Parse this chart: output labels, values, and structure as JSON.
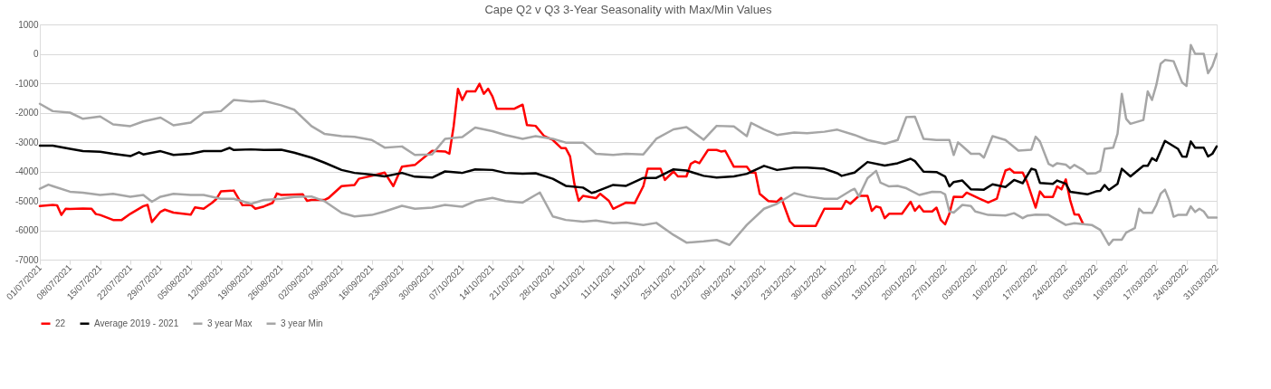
{
  "chart_data": {
    "type": "line",
    "title": "Cape Q2 v Q3 3-Year Seasonality with Max/Min Values",
    "xlim": [
      "2021-07-01",
      "2022-03-31"
    ],
    "xticks": [
      {
        "value": "2021-07-01",
        "label": "01/07/2021"
      },
      {
        "value": "2021-07-08",
        "label": "08/07/2021"
      },
      {
        "value": "2021-07-15",
        "label": "15/07/2021"
      },
      {
        "value": "2021-07-22",
        "label": "22/07/2021"
      },
      {
        "value": "2021-07-29",
        "label": "29/07/2021"
      },
      {
        "value": "2021-08-05",
        "label": "05/08/2021"
      },
      {
        "value": "2021-08-12",
        "label": "12/08/2021"
      },
      {
        "value": "2021-08-19",
        "label": "19/08/2021"
      },
      {
        "value": "2021-08-26",
        "label": "26/08/2021"
      },
      {
        "value": "2021-09-02",
        "label": "02/09/2021"
      },
      {
        "value": "2021-09-09",
        "label": "09/09/2021"
      },
      {
        "value": "2021-09-16",
        "label": "16/09/2021"
      },
      {
        "value": "2021-09-23",
        "label": "23/09/2021"
      },
      {
        "value": "2021-09-30",
        "label": "30/09/2021"
      },
      {
        "value": "2021-10-07",
        "label": "07/10/2021"
      },
      {
        "value": "2021-10-14",
        "label": "14/10/2021"
      },
      {
        "value": "2021-10-21",
        "label": "21/10/2021"
      },
      {
        "value": "2021-10-28",
        "label": "28/10/2021"
      },
      {
        "value": "2021-11-04",
        "label": "04/11/2021"
      },
      {
        "value": "2021-11-11",
        "label": "11/11/2021"
      },
      {
        "value": "2021-11-18",
        "label": "18/11/2021"
      },
      {
        "value": "2021-11-25",
        "label": "25/11/2021"
      },
      {
        "value": "2021-12-02",
        "label": "02/12/2021"
      },
      {
        "value": "2021-12-09",
        "label": "09/12/2021"
      },
      {
        "value": "2021-12-16",
        "label": "16/12/2021"
      },
      {
        "value": "2021-12-23",
        "label": "23/12/2021"
      },
      {
        "value": "2021-12-30",
        "label": "30/12/2021"
      },
      {
        "value": "2022-01-06",
        "label": "06/01/2022"
      },
      {
        "value": "2022-01-13",
        "label": "13/01/2022"
      },
      {
        "value": "2022-01-20",
        "label": "20/01/2022"
      },
      {
        "value": "2022-01-27",
        "label": "27/01/2022"
      },
      {
        "value": "2022-02-03",
        "label": "03/02/2022"
      },
      {
        "value": "2022-02-10",
        "label": "10/02/2022"
      },
      {
        "value": "2022-02-17",
        "label": "17/02/2022"
      },
      {
        "value": "2022-02-24",
        "label": "24/02/2022"
      },
      {
        "value": "2022-03-03",
        "label": "03/03/2022"
      },
      {
        "value": "2022-03-10",
        "label": "10/03/2022"
      },
      {
        "value": "2022-03-17",
        "label": "17/03/2022"
      },
      {
        "value": "2022-03-24",
        "label": "24/03/2022"
      },
      {
        "value": "2022-03-31",
        "label": "31/03/2022"
      }
    ],
    "ylim": [
      -7000,
      1000
    ],
    "yticks": [
      -7000,
      -6000,
      -5000,
      -4000,
      -3000,
      -2000,
      -1000,
      0,
      1000
    ],
    "grid": "y",
    "legend": "bottom",
    "series": [
      {
        "name": "22",
        "color": "#ff0000",
        "x": [
          "2021-07-01",
          "2021-07-04",
          "2021-07-05",
          "2021-07-06",
          "2021-07-07",
          "2021-07-08",
          "2021-07-11",
          "2021-07-13",
          "2021-07-14",
          "2021-07-15",
          "2021-07-18",
          "2021-07-20",
          "2021-07-22",
          "2021-07-25",
          "2021-07-26",
          "2021-07-27",
          "2021-07-29",
          "2021-07-30",
          "2021-08-01",
          "2021-08-05",
          "2021-08-06",
          "2021-08-08",
          "2021-08-10",
          "2021-08-11",
          "2021-08-12",
          "2021-08-15",
          "2021-08-17",
          "2021-08-19",
          "2021-08-20",
          "2021-08-22",
          "2021-08-24",
          "2021-08-25",
          "2021-08-26",
          "2021-08-31",
          "2021-09-01",
          "2021-09-02",
          "2021-09-05",
          "2021-09-06",
          "2021-09-09",
          "2021-09-12",
          "2021-09-13",
          "2021-09-16",
          "2021-09-19",
          "2021-09-21",
          "2021-09-23",
          "2021-09-26",
          "2021-09-30",
          "2021-10-03",
          "2021-10-04",
          "2021-10-05",
          "2021-10-06",
          "2021-10-07",
          "2021-10-08",
          "2021-10-10",
          "2021-10-11",
          "2021-10-12",
          "2021-10-13",
          "2021-10-14",
          "2021-10-15",
          "2021-10-19",
          "2021-10-20",
          "2021-10-21",
          "2021-10-22",
          "2021-10-24",
          "2021-10-26",
          "2021-10-28",
          "2021-10-30",
          "2021-10-31",
          "2021-11-01",
          "2021-11-02",
          "2021-11-03",
          "2021-11-04",
          "2021-11-07",
          "2021-11-08",
          "2021-11-10",
          "2021-11-11",
          "2021-11-14",
          "2021-11-16",
          "2021-11-18",
          "2021-11-19",
          "2021-11-22",
          "2021-11-23",
          "2021-11-25",
          "2021-11-26",
          "2021-11-28",
          "2021-11-29",
          "2021-11-30",
          "2021-12-01",
          "2021-12-03",
          "2021-12-05",
          "2021-12-06",
          "2021-12-07",
          "2021-12-09",
          "2021-12-12",
          "2021-12-13",
          "2021-12-14",
          "2021-12-15",
          "2021-12-17",
          "2021-12-19",
          "2021-12-20",
          "2021-12-22",
          "2021-12-23",
          "2021-12-28",
          "2021-12-30",
          "2022-01-03",
          "2022-01-04",
          "2022-01-05",
          "2022-01-07",
          "2022-01-09",
          "2022-01-10",
          "2022-01-11",
          "2022-01-12",
          "2022-01-13",
          "2022-01-14",
          "2022-01-16",
          "2022-01-17",
          "2022-01-19",
          "2022-01-20",
          "2022-01-21",
          "2022-01-22",
          "2022-01-24",
          "2022-01-25",
          "2022-01-26",
          "2022-01-27",
          "2022-01-28",
          "2022-01-29",
          "2022-01-31",
          "2022-02-01",
          "2022-02-04",
          "2022-02-06",
          "2022-02-08",
          "2022-02-09",
          "2022-02-10",
          "2022-02-11",
          "2022-02-12",
          "2022-02-14",
          "2022-02-15",
          "2022-02-17",
          "2022-02-18",
          "2022-02-19",
          "2022-02-21",
          "2022-02-22",
          "2022-02-23",
          "2022-02-24",
          "2022-02-25",
          "2022-02-26",
          "2022-02-27",
          "2022-02-28"
        ],
        "values": [
          -5180,
          -5140,
          -5150,
          -5480,
          -5270,
          -5280,
          -5260,
          -5270,
          -5450,
          -5480,
          -5650,
          -5650,
          -5440,
          -5180,
          -5140,
          -5720,
          -5370,
          -5300,
          -5400,
          -5470,
          -5220,
          -5270,
          -5060,
          -4930,
          -4680,
          -4650,
          -5150,
          -5140,
          -5270,
          -5190,
          -5070,
          -4750,
          -4800,
          -4780,
          -5000,
          -4970,
          -4970,
          -4900,
          -4500,
          -4460,
          -4250,
          -4150,
          -4040,
          -4500,
          -3840,
          -3780,
          -3300,
          -3320,
          -3400,
          -2460,
          -1190,
          -1570,
          -1280,
          -1280,
          -1020,
          -1360,
          -1190,
          -1450,
          -1870,
          -1870,
          -1800,
          -1730,
          -2420,
          -2450,
          -2800,
          -2930,
          -3210,
          -3210,
          -3490,
          -4420,
          -5000,
          -4830,
          -4910,
          -4760,
          -5000,
          -5270,
          -5060,
          -5080,
          -4500,
          -3910,
          -3910,
          -4290,
          -4000,
          -4170,
          -4170,
          -3740,
          -3660,
          -3720,
          -3270,
          -3270,
          -3320,
          -3300,
          -3840,
          -3840,
          -4040,
          -4040,
          -4760,
          -5010,
          -5030,
          -4900,
          -5700,
          -5850,
          -5850,
          -5270,
          -5270,
          -5000,
          -5100,
          -4830,
          -4830,
          -5340,
          -5190,
          -5230,
          -5590,
          -5440,
          -5440,
          -5440,
          -5030,
          -5340,
          -5170,
          -5360,
          -5360,
          -5230,
          -5650,
          -5800,
          -5440,
          -4860,
          -4870,
          -4720,
          -4930,
          -5060,
          -4930,
          -4420,
          -3970,
          -3910,
          -4040,
          -4040,
          -4350,
          -5230,
          -4680,
          -4870,
          -4870,
          -4510,
          -4610,
          -4270,
          -4970,
          -5460,
          -5470,
          -5780
        ]
      },
      {
        "name": "Average 2019 - 2021",
        "color": "#000000",
        "x": [
          "2021-07-01",
          "2021-07-04",
          "2021-07-08",
          "2021-07-11",
          "2021-07-15",
          "2021-07-18",
          "2021-07-22",
          "2021-07-24",
          "2021-07-25",
          "2021-07-29",
          "2021-08-01",
          "2021-08-05",
          "2021-08-08",
          "2021-08-12",
          "2021-08-14",
          "2021-08-15",
          "2021-08-19",
          "2021-08-22",
          "2021-08-26",
          "2021-08-29",
          "2021-09-02",
          "2021-09-05",
          "2021-09-09",
          "2021-09-12",
          "2021-09-16",
          "2021-09-19",
          "2021-09-23",
          "2021-09-26",
          "2021-09-30",
          "2021-10-03",
          "2021-10-07",
          "2021-10-10",
          "2021-10-14",
          "2021-10-17",
          "2021-10-21",
          "2021-10-24",
          "2021-10-28",
          "2021-10-31",
          "2021-11-04",
          "2021-11-06",
          "2021-11-07",
          "2021-11-11",
          "2021-11-14",
          "2021-11-18",
          "2021-11-21",
          "2021-11-25",
          "2021-11-28",
          "2021-12-02",
          "2021-12-05",
          "2021-12-09",
          "2021-12-12",
          "2021-12-16",
          "2021-12-19",
          "2021-12-23",
          "2021-12-26",
          "2021-12-30",
          "2022-01-02",
          "2022-01-03",
          "2022-01-06",
          "2022-01-09",
          "2022-01-13",
          "2022-01-16",
          "2022-01-19",
          "2022-01-20",
          "2022-01-22",
          "2022-01-25",
          "2022-01-27",
          "2022-01-28",
          "2022-01-29",
          "2022-01-31",
          "2022-02-02",
          "2022-02-05",
          "2022-02-07",
          "2022-02-10",
          "2022-02-12",
          "2022-02-14",
          "2022-02-16",
          "2022-02-17",
          "2022-02-18",
          "2022-02-21",
          "2022-02-22",
          "2022-02-24",
          "2022-02-25",
          "2022-03-01",
          "2022-03-03",
          "2022-03-04",
          "2022-03-05",
          "2022-03-06",
          "2022-03-08",
          "2022-03-09",
          "2022-03-11",
          "2022-03-14",
          "2022-03-15",
          "2022-03-16",
          "2022-03-17",
          "2022-03-19",
          "2022-03-22",
          "2022-03-23",
          "2022-03-24",
          "2022-03-25",
          "2022-03-26",
          "2022-03-28",
          "2022-03-29",
          "2022-03-30",
          "2022-03-31"
        ],
        "values": [
          -3120,
          -3120,
          -3230,
          -3310,
          -3330,
          -3400,
          -3480,
          -3350,
          -3420,
          -3310,
          -3440,
          -3400,
          -3310,
          -3310,
          -3200,
          -3270,
          -3250,
          -3270,
          -3260,
          -3360,
          -3530,
          -3700,
          -3950,
          -4050,
          -4110,
          -4170,
          -4050,
          -4180,
          -4210,
          -4000,
          -4050,
          -3930,
          -3950,
          -4050,
          -4080,
          -4060,
          -4250,
          -4490,
          -4550,
          -4730,
          -4690,
          -4460,
          -4490,
          -4220,
          -4220,
          -3930,
          -3970,
          -4150,
          -4210,
          -4170,
          -4080,
          -3810,
          -3950,
          -3870,
          -3870,
          -3910,
          -4060,
          -4150,
          -4040,
          -3680,
          -3800,
          -3720,
          -3570,
          -3650,
          -4010,
          -4020,
          -4170,
          -4510,
          -4360,
          -4310,
          -4610,
          -4620,
          -4440,
          -4530,
          -4290,
          -4400,
          -3910,
          -3950,
          -4390,
          -4420,
          -4310,
          -4420,
          -4690,
          -4780,
          -4680,
          -4660,
          -4460,
          -4630,
          -4420,
          -3910,
          -4170,
          -3810,
          -3810,
          -3550,
          -3640,
          -2960,
          -3230,
          -3490,
          -3500,
          -2980,
          -3190,
          -3190,
          -3490,
          -3400,
          -3150
        ]
      },
      {
        "name": "3 year Max",
        "color": "#a6a6a6",
        "x": [
          "2021-07-01",
          "2021-07-04",
          "2021-07-08",
          "2021-07-11",
          "2021-07-15",
          "2021-07-18",
          "2021-07-22",
          "2021-07-25",
          "2021-07-29",
          "2021-08-01",
          "2021-08-05",
          "2021-08-08",
          "2021-08-12",
          "2021-08-15",
          "2021-08-19",
          "2021-08-22",
          "2021-08-26",
          "2021-08-29",
          "2021-09-02",
          "2021-09-05",
          "2021-09-09",
          "2021-09-12",
          "2021-09-16",
          "2021-09-19",
          "2021-09-23",
          "2021-09-26",
          "2021-09-30",
          "2021-10-03",
          "2021-10-07",
          "2021-10-10",
          "2021-10-14",
          "2021-10-17",
          "2021-10-21",
          "2021-10-24",
          "2021-10-28",
          "2021-10-31",
          "2021-11-04",
          "2021-11-07",
          "2021-11-11",
          "2021-11-14",
          "2021-11-18",
          "2021-11-21",
          "2021-11-25",
          "2021-11-28",
          "2021-12-02",
          "2021-12-05",
          "2021-12-09",
          "2021-12-12",
          "2021-12-13",
          "2021-12-16",
          "2021-12-19",
          "2021-12-23",
          "2021-12-26",
          "2021-12-30",
          "2022-01-02",
          "2022-01-06",
          "2022-01-09",
          "2022-01-13",
          "2022-01-16",
          "2022-01-18",
          "2022-01-20",
          "2022-01-22",
          "2022-01-25",
          "2022-01-28",
          "2022-01-29",
          "2022-01-30",
          "2022-01-31",
          "2022-02-02",
          "2022-02-04",
          "2022-02-05",
          "2022-02-07",
          "2022-02-10",
          "2022-02-13",
          "2022-02-16",
          "2022-02-17",
          "2022-02-18",
          "2022-02-20",
          "2022-02-21",
          "2022-02-22",
          "2022-02-24",
          "2022-02-25",
          "2022-02-26",
          "2022-02-28",
          "2022-03-01",
          "2022-03-03",
          "2022-03-04",
          "2022-03-05",
          "2022-03-07",
          "2022-03-08",
          "2022-03-09",
          "2022-03-10",
          "2022-03-11",
          "2022-03-14",
          "2022-03-15",
          "2022-03-16",
          "2022-03-17",
          "2022-03-18",
          "2022-03-19",
          "2022-03-21",
          "2022-03-23",
          "2022-03-24",
          "2022-03-25",
          "2022-03-26",
          "2022-03-28",
          "2022-03-29",
          "2022-03-30",
          "2022-03-31"
        ],
        "values": [
          -1700,
          -1950,
          -2000,
          -2210,
          -2130,
          -2400,
          -2460,
          -2300,
          -2170,
          -2430,
          -2340,
          -2000,
          -1950,
          -1570,
          -1620,
          -1600,
          -1750,
          -1900,
          -2460,
          -2720,
          -2800,
          -2820,
          -2930,
          -3190,
          -3150,
          -3440,
          -3420,
          -2890,
          -2830,
          -2510,
          -2630,
          -2760,
          -2890,
          -2800,
          -2890,
          -3020,
          -3020,
          -3400,
          -3440,
          -3400,
          -3420,
          -2890,
          -2570,
          -2490,
          -2920,
          -2450,
          -2470,
          -2800,
          -2350,
          -2570,
          -2760,
          -2680,
          -2700,
          -2650,
          -2580,
          -2760,
          -2930,
          -3060,
          -2930,
          -2150,
          -2140,
          -2890,
          -2930,
          -2930,
          -3440,
          -3010,
          -3140,
          -3400,
          -3400,
          -3530,
          -2800,
          -2930,
          -3290,
          -3260,
          -2820,
          -2980,
          -3740,
          -3820,
          -3720,
          -3770,
          -3890,
          -3780,
          -3950,
          -4080,
          -4060,
          -3980,
          -3230,
          -3190,
          -2720,
          -1360,
          -2210,
          -2380,
          -2250,
          -1280,
          -1570,
          -1060,
          -340,
          -210,
          -250,
          -980,
          -1090,
          300,
          0,
          0,
          -660,
          -420,
          0
        ]
      },
      {
        "name": "3 year Min",
        "color": "#a6a6a6",
        "x": [
          "2021-07-01",
          "2021-07-03",
          "2021-07-04",
          "2021-07-08",
          "2021-07-11",
          "2021-07-15",
          "2021-07-18",
          "2021-07-22",
          "2021-07-25",
          "2021-07-27",
          "2021-07-29",
          "2021-08-01",
          "2021-08-05",
          "2021-08-08",
          "2021-08-12",
          "2021-08-15",
          "2021-08-19",
          "2021-08-22",
          "2021-08-26",
          "2021-08-29",
          "2021-09-02",
          "2021-09-05",
          "2021-09-09",
          "2021-09-12",
          "2021-09-16",
          "2021-09-19",
          "2021-09-23",
          "2021-09-26",
          "2021-09-30",
          "2021-10-03",
          "2021-10-07",
          "2021-10-10",
          "2021-10-14",
          "2021-10-17",
          "2021-10-21",
          "2021-10-24",
          "2021-10-25",
          "2021-10-28",
          "2021-10-31",
          "2021-11-04",
          "2021-11-07",
          "2021-11-11",
          "2021-11-14",
          "2021-11-18",
          "2021-11-21",
          "2021-11-25",
          "2021-11-28",
          "2021-12-02",
          "2021-12-05",
          "2021-12-08",
          "2021-12-12",
          "2021-12-16",
          "2021-12-19",
          "2021-12-23",
          "2021-12-26",
          "2021-12-30",
          "2022-01-02",
          "2022-01-05",
          "2022-01-06",
          "2022-01-07",
          "2022-01-09",
          "2022-01-11",
          "2022-01-12",
          "2022-01-14",
          "2022-01-16",
          "2022-01-18",
          "2022-01-21",
          "2022-01-24",
          "2022-01-26",
          "2022-01-27",
          "2022-01-28",
          "2022-01-29",
          "2022-01-31",
          "2022-02-02",
          "2022-02-03",
          "2022-02-06",
          "2022-02-10",
          "2022-02-12",
          "2022-02-14",
          "2022-02-15",
          "2022-02-17",
          "2022-02-20",
          "2022-02-24",
          "2022-02-26",
          "2022-03-02",
          "2022-03-04",
          "2022-03-06",
          "2022-03-07",
          "2022-03-09",
          "2022-03-10",
          "2022-03-12",
          "2022-03-13",
          "2022-03-14",
          "2022-03-16",
          "2022-03-17",
          "2022-03-18",
          "2022-03-19",
          "2022-03-20",
          "2022-03-21",
          "2022-03-22",
          "2022-03-24",
          "2022-03-25",
          "2022-03-26",
          "2022-03-27",
          "2022-03-28",
          "2022-03-29",
          "2022-03-31"
        ],
        "values": [
          -4590,
          -4450,
          -4500,
          -4690,
          -4720,
          -4800,
          -4760,
          -4860,
          -4800,
          -5030,
          -4860,
          -4760,
          -4800,
          -4800,
          -4930,
          -4930,
          -5100,
          -4970,
          -4930,
          -4870,
          -4850,
          -5010,
          -5410,
          -5530,
          -5480,
          -5360,
          -5170,
          -5270,
          -5230,
          -5140,
          -5200,
          -5010,
          -4900,
          -5010,
          -5060,
          -4800,
          -4720,
          -5530,
          -5650,
          -5710,
          -5670,
          -5760,
          -5740,
          -5820,
          -5750,
          -6160,
          -6420,
          -6380,
          -6330,
          -6500,
          -5820,
          -5270,
          -5100,
          -4740,
          -4850,
          -4930,
          -4930,
          -4660,
          -4590,
          -4850,
          -4230,
          -3980,
          -4380,
          -4510,
          -4490,
          -4570,
          -4800,
          -4690,
          -4700,
          -4780,
          -5360,
          -5400,
          -5140,
          -5180,
          -5360,
          -5480,
          -5500,
          -5420,
          -5590,
          -5510,
          -5470,
          -5480,
          -5820,
          -5760,
          -5820,
          -5990,
          -6500,
          -6320,
          -6320,
          -6080,
          -5930,
          -5270,
          -5410,
          -5410,
          -5140,
          -4760,
          -4620,
          -4980,
          -5540,
          -5480,
          -5480,
          -5190,
          -5380,
          -5270,
          -5360,
          -5570,
          -5570
        ]
      }
    ]
  }
}
